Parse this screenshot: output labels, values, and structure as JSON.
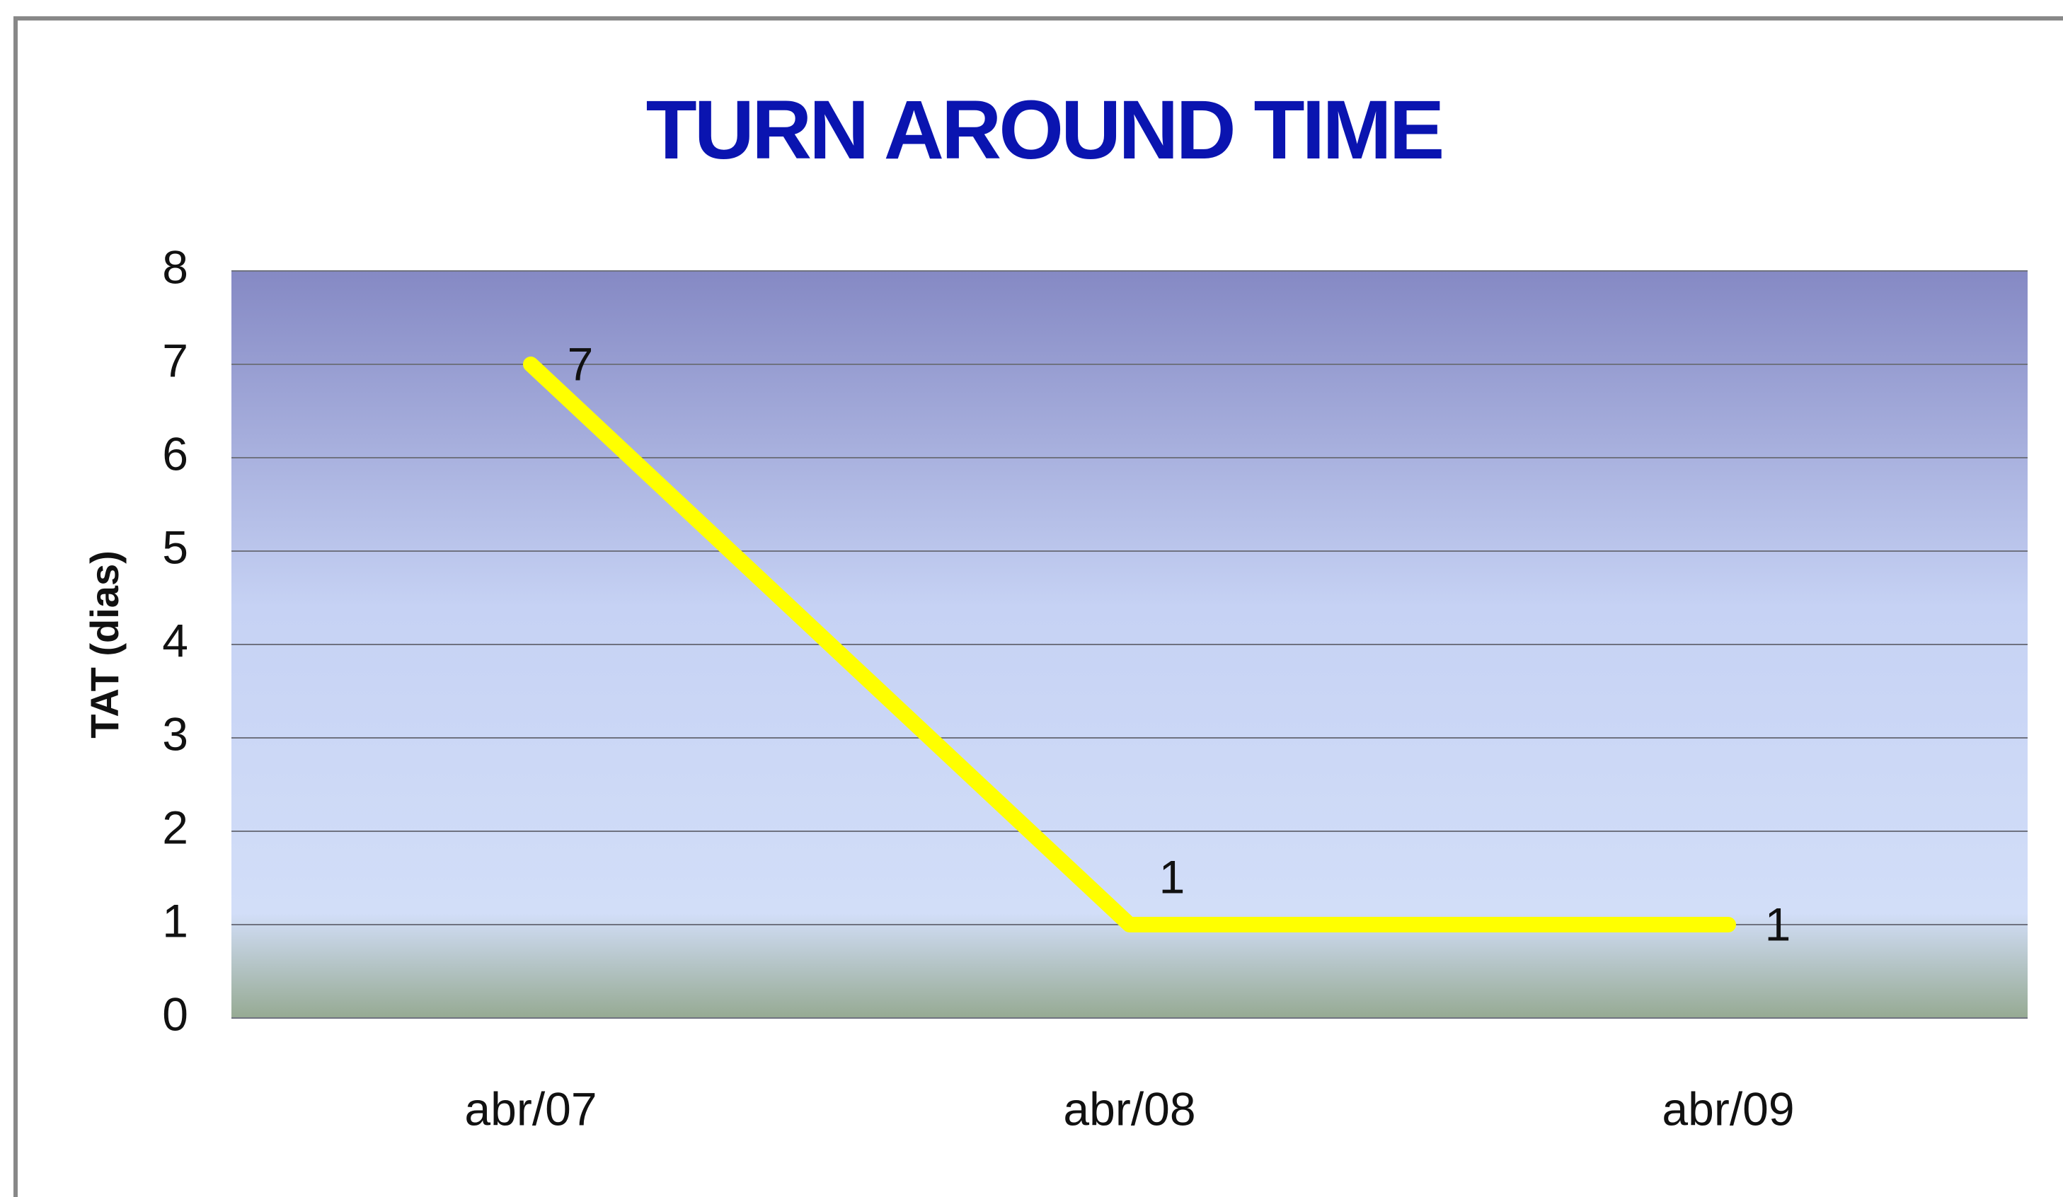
{
  "chart_data": {
    "type": "line",
    "title": "TURN AROUND TIME",
    "ylabel": "TAT (dias)",
    "categories": [
      "abr/07",
      "abr/08",
      "abr/09"
    ],
    "series": [
      {
        "name": "TAT",
        "color": "#ffff00",
        "values": [
          7,
          1,
          1
        ]
      }
    ],
    "ylim": [
      0,
      8
    ],
    "yticks": [
      0,
      1,
      2,
      3,
      4,
      5,
      6,
      7,
      8
    ],
    "grid": true
  }
}
